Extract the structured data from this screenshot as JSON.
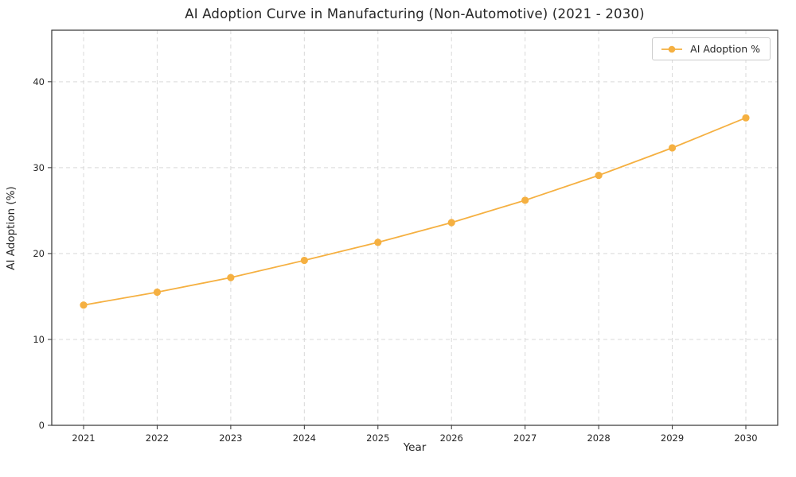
{
  "chart_data": {
    "type": "line",
    "title": "AI Adoption Curve in Manufacturing (Non-Automotive) (2021 - 2030)",
    "xlabel": "Year",
    "ylabel": "AI Adoption (%)",
    "categories": [
      "2021",
      "2022",
      "2023",
      "2024",
      "2025",
      "2026",
      "2027",
      "2028",
      "2029",
      "2030"
    ],
    "series": [
      {
        "name": "AI Adoption %",
        "color": "#f5b041",
        "values": [
          14.0,
          15.5,
          17.2,
          19.2,
          21.3,
          23.6,
          26.2,
          29.1,
          32.3,
          35.8
        ]
      }
    ],
    "ylim": [
      0,
      46
    ],
    "yticks": [
      0,
      10,
      20,
      30,
      40
    ],
    "grid": true,
    "grid_style": "dashed",
    "grid_color": "#d9d9d9",
    "spine_color": "#333333",
    "legend_position": "upper right"
  }
}
